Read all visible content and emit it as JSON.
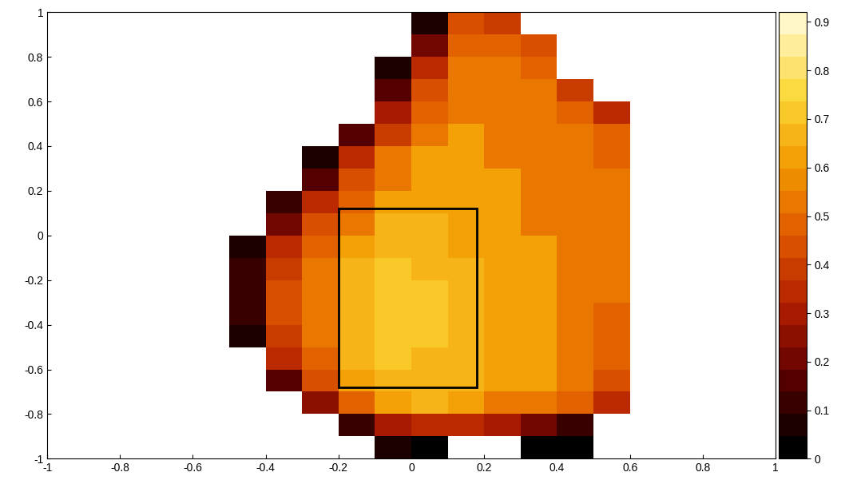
{
  "chart_data": {
    "type": "heatmap",
    "xlim": [
      -1,
      1
    ],
    "ylim": [
      -1,
      1
    ],
    "xticks": [
      -1,
      -0.8,
      -0.6,
      -0.4,
      -0.2,
      0,
      0.2,
      0.4,
      0.6,
      0.8,
      1
    ],
    "yticks": [
      -1,
      -0.8,
      -0.6,
      -0.4,
      -0.2,
      0,
      0.2,
      0.4,
      0.6,
      0.8,
      1
    ],
    "x_edges": [
      -1,
      -0.9,
      -0.8,
      -0.7,
      -0.6,
      -0.5,
      -0.4,
      -0.3,
      -0.2,
      -0.1,
      0,
      0.1,
      0.2,
      0.3,
      0.4,
      0.5,
      0.6,
      0.7,
      0.8,
      0.9,
      1
    ],
    "y_edges": [
      1,
      0.9,
      0.8,
      0.7,
      0.6,
      0.5,
      0.4,
      0.3,
      0.2,
      0.1,
      0,
      -0.1,
      -0.2,
      -0.3,
      -0.4,
      -0.5,
      -0.6,
      -0.7,
      -0.8,
      -0.9,
      -1
    ],
    "cells": [
      [
        null,
        null,
        null,
        null,
        null,
        null,
        null,
        null,
        null,
        null,
        0.05,
        0.45,
        0.4,
        null,
        null,
        null,
        null,
        null,
        null,
        null
      ],
      [
        null,
        null,
        null,
        null,
        null,
        null,
        null,
        null,
        null,
        null,
        0.2,
        0.5,
        0.5,
        0.45,
        null,
        null,
        null,
        null,
        null,
        null
      ],
      [
        null,
        null,
        null,
        null,
        null,
        null,
        null,
        null,
        null,
        0.05,
        0.35,
        0.55,
        0.55,
        0.5,
        null,
        null,
        null,
        null,
        null,
        null
      ],
      [
        null,
        null,
        null,
        null,
        null,
        null,
        null,
        null,
        null,
        0.15,
        0.45,
        0.55,
        0.55,
        0.55,
        0.4,
        null,
        null,
        null,
        null,
        null
      ],
      [
        null,
        null,
        null,
        null,
        null,
        null,
        null,
        null,
        null,
        0.3,
        0.5,
        0.55,
        0.55,
        0.55,
        0.5,
        0.35,
        null,
        null,
        null,
        null
      ],
      [
        null,
        null,
        null,
        null,
        null,
        null,
        null,
        null,
        0.15,
        0.4,
        0.55,
        0.6,
        0.55,
        0.55,
        0.55,
        0.5,
        null,
        null,
        null,
        null
      ],
      [
        null,
        null,
        null,
        null,
        null,
        null,
        null,
        0.05,
        0.35,
        0.55,
        0.6,
        0.6,
        0.55,
        0.55,
        0.55,
        0.5,
        null,
        null,
        null,
        null
      ],
      [
        null,
        null,
        null,
        null,
        null,
        null,
        null,
        0.15,
        0.45,
        0.55,
        0.6,
        0.6,
        0.6,
        0.55,
        0.55,
        0.55,
        null,
        null,
        null,
        null
      ],
      [
        null,
        null,
        null,
        null,
        null,
        null,
        0.1,
        0.35,
        0.5,
        0.6,
        0.6,
        0.6,
        0.6,
        0.55,
        0.55,
        0.55,
        null,
        null,
        null,
        null
      ],
      [
        null,
        null,
        null,
        null,
        null,
        null,
        0.2,
        0.45,
        0.55,
        0.65,
        0.65,
        0.6,
        0.6,
        0.55,
        0.55,
        0.55,
        null,
        null,
        null,
        null
      ],
      [
        null,
        null,
        null,
        null,
        null,
        0.05,
        0.35,
        0.5,
        0.6,
        0.65,
        0.65,
        0.6,
        0.6,
        0.6,
        0.55,
        0.55,
        null,
        null,
        null,
        null
      ],
      [
        null,
        null,
        null,
        null,
        null,
        0.1,
        0.4,
        0.55,
        0.65,
        0.7,
        0.65,
        0.65,
        0.6,
        0.6,
        0.55,
        0.55,
        null,
        null,
        null,
        null
      ],
      [
        null,
        null,
        null,
        null,
        null,
        0.1,
        0.45,
        0.55,
        0.65,
        0.7,
        0.7,
        0.65,
        0.6,
        0.6,
        0.55,
        0.55,
        null,
        null,
        null,
        null
      ],
      [
        null,
        null,
        null,
        null,
        null,
        0.1,
        0.45,
        0.55,
        0.65,
        0.7,
        0.7,
        0.65,
        0.6,
        0.6,
        0.55,
        0.5,
        null,
        null,
        null,
        null
      ],
      [
        null,
        null,
        null,
        null,
        null,
        0.05,
        0.4,
        0.55,
        0.65,
        0.7,
        0.7,
        0.65,
        0.6,
        0.6,
        0.55,
        0.5,
        null,
        null,
        null,
        null
      ],
      [
        null,
        null,
        null,
        null,
        null,
        null,
        0.35,
        0.5,
        0.65,
        0.7,
        0.65,
        0.65,
        0.6,
        0.6,
        0.55,
        0.5,
        null,
        null,
        null,
        null
      ],
      [
        null,
        null,
        null,
        null,
        null,
        null,
        0.15,
        0.45,
        0.6,
        0.65,
        0.65,
        0.65,
        0.6,
        0.6,
        0.55,
        0.45,
        null,
        null,
        null,
        null
      ],
      [
        null,
        null,
        null,
        null,
        null,
        null,
        null,
        0.25,
        0.5,
        0.6,
        0.65,
        0.6,
        0.55,
        0.55,
        0.5,
        0.35,
        null,
        null,
        null,
        null
      ],
      [
        null,
        null,
        null,
        null,
        null,
        null,
        null,
        null,
        0.1,
        0.3,
        0.35,
        0.35,
        0.3,
        0.2,
        0.1,
        null,
        null,
        null,
        null,
        null
      ],
      [
        null,
        null,
        null,
        null,
        null,
        null,
        null,
        null,
        null,
        0.05,
        0.02,
        null,
        null,
        0.0,
        0.0,
        null,
        null,
        null,
        null,
        null
      ]
    ],
    "colorbar_range": [
      0,
      0.92
    ],
    "colorbar_ticks": [
      0,
      0.1,
      0.2,
      0.3,
      0.4,
      0.5,
      0.6,
      0.7,
      0.8,
      0.9
    ],
    "box": {
      "x": [
        -0.2,
        0.18
      ],
      "y": [
        -0.68,
        0.12
      ]
    }
  }
}
